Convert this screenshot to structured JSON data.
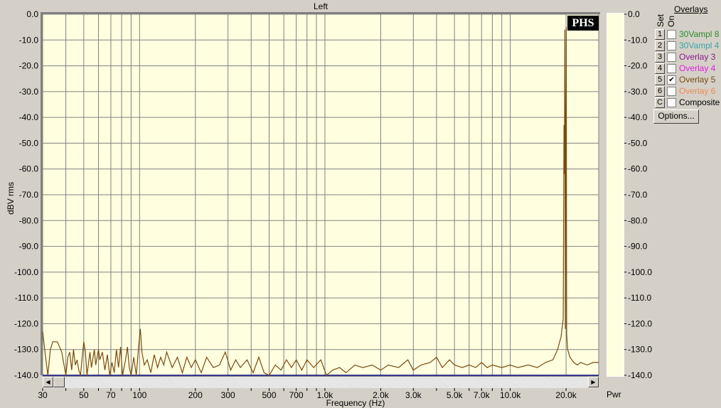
{
  "window": {
    "title": "Left",
    "pwr_label": "Pwr"
  },
  "overlays": {
    "title": "Overlays",
    "set_label": "Set",
    "on_label": "On",
    "options_label": "Options...",
    "items": [
      {
        "key": "1",
        "label": "30Vampl 8",
        "color": "#2e8b2e",
        "on": false
      },
      {
        "key": "2",
        "label": "30Vampl 4",
        "color": "#3aa6a6",
        "on": false
      },
      {
        "key": "3",
        "label": "Overlay 3",
        "color": "#8b1a8b",
        "on": false
      },
      {
        "key": "4",
        "label": "Overlay 4",
        "color": "#e020e0",
        "on": false
      },
      {
        "key": "5",
        "label": "Overlay 5",
        "color": "#7a4a10",
        "on": true
      },
      {
        "key": "6",
        "label": "Overlay 6",
        "color": "#f08a50",
        "on": false
      },
      {
        "key": "C",
        "label": "Composite",
        "color": "#000000",
        "on": false
      }
    ]
  },
  "logo": "PHS",
  "chart_data": {
    "type": "line",
    "title": "Left",
    "xlabel": "Frequency (Hz)",
    "ylabel": "dBV rms",
    "x_scale": "log",
    "xlim": [
      30,
      30000
    ],
    "ylim": [
      -140,
      0
    ],
    "grid": true,
    "plot_bg": "#ffffe0",
    "trace_color": "#7a4a10",
    "xticks": [
      30,
      50,
      70,
      100,
      200,
      300,
      500,
      700,
      1000,
      2000,
      3000,
      5000,
      7000,
      10000,
      20000
    ],
    "xtick_labels": [
      "30",
      "50",
      "70",
      "100",
      "200",
      "300",
      "500",
      "700",
      "1.0k",
      "2.0k",
      "3.0k",
      "5.0k",
      "7.0k",
      "10.0k",
      "20.0k"
    ],
    "yticks": [
      0,
      -10,
      -20,
      -30,
      -40,
      -50,
      -60,
      -70,
      -80,
      -90,
      -100,
      -110,
      -120,
      -130,
      -140
    ],
    "ytick_labels": [
      "0.0",
      "-10.0",
      "-20.0",
      "-30.0",
      "-40.0",
      "-50.0",
      "-60.0",
      "-70.0",
      "-80.0",
      "-90.0",
      "-100.0",
      "-110.0",
      "-120.0",
      "-130.0",
      "-140.0"
    ],
    "series": [
      {
        "points": [
          [
            30,
            -123
          ],
          [
            31,
            -132
          ],
          [
            32,
            -140
          ],
          [
            33,
            -130
          ],
          [
            34,
            -127
          ],
          [
            36,
            -127
          ],
          [
            38,
            -131
          ],
          [
            40,
            -140
          ],
          [
            41,
            -133
          ],
          [
            42,
            -131
          ],
          [
            43,
            -138
          ],
          [
            44,
            -130
          ],
          [
            45,
            -136
          ],
          [
            46,
            -134
          ],
          [
            47,
            -138
          ],
          [
            48,
            -140
          ],
          [
            50,
            -127
          ],
          [
            51,
            -131
          ],
          [
            52,
            -140
          ],
          [
            54,
            -131
          ],
          [
            55,
            -137
          ],
          [
            57,
            -130
          ],
          [
            58,
            -136
          ],
          [
            60,
            -130
          ],
          [
            61,
            -134
          ],
          [
            63,
            -131
          ],
          [
            65,
            -138
          ],
          [
            67,
            -132
          ],
          [
            69,
            -140
          ],
          [
            71,
            -135
          ],
          [
            73,
            -139
          ],
          [
            75,
            -130
          ],
          [
            77,
            -137
          ],
          [
            79,
            -129
          ],
          [
            81,
            -140
          ],
          [
            84,
            -134
          ],
          [
            86,
            -129
          ],
          [
            88,
            -137
          ],
          [
            90,
            -140
          ],
          [
            93,
            -133
          ],
          [
            96,
            -140
          ],
          [
            99,
            -128
          ],
          [
            101,
            -122
          ],
          [
            103,
            -131
          ],
          [
            106,
            -136
          ],
          [
            110,
            -134
          ],
          [
            115,
            -139
          ],
          [
            120,
            -132
          ],
          [
            125,
            -137
          ],
          [
            130,
            -133
          ],
          [
            135,
            -136
          ],
          [
            140,
            -131
          ],
          [
            150,
            -137
          ],
          [
            160,
            -133
          ],
          [
            170,
            -139
          ],
          [
            180,
            -133
          ],
          [
            190,
            -137
          ],
          [
            200,
            -134
          ],
          [
            215,
            -139
          ],
          [
            230,
            -133
          ],
          [
            250,
            -137
          ],
          [
            270,
            -136
          ],
          [
            290,
            -131
          ],
          [
            310,
            -138
          ],
          [
            330,
            -134
          ],
          [
            350,
            -137
          ],
          [
            380,
            -134
          ],
          [
            410,
            -139
          ],
          [
            440,
            -133
          ],
          [
            470,
            -139
          ],
          [
            500,
            -140
          ],
          [
            540,
            -136
          ],
          [
            580,
            -138
          ],
          [
            620,
            -134
          ],
          [
            660,
            -137
          ],
          [
            700,
            -134
          ],
          [
            750,
            -138
          ],
          [
            800,
            -134
          ],
          [
            870,
            -137
          ],
          [
            950,
            -134
          ],
          [
            1020,
            -140
          ],
          [
            1100,
            -138
          ],
          [
            1200,
            -137
          ],
          [
            1300,
            -139
          ],
          [
            1450,
            -136
          ],
          [
            1600,
            -137
          ],
          [
            1800,
            -136
          ],
          [
            2000,
            -138
          ],
          [
            2200,
            -136
          ],
          [
            2500,
            -137
          ],
          [
            2800,
            -134
          ],
          [
            3000,
            -138
          ],
          [
            3300,
            -136
          ],
          [
            3700,
            -135
          ],
          [
            4000,
            -133
          ],
          [
            4300,
            -137
          ],
          [
            4700,
            -134
          ],
          [
            5000,
            -136
          ],
          [
            5500,
            -137
          ],
          [
            6000,
            -136
          ],
          [
            6500,
            -137
          ],
          [
            7000,
            -135
          ],
          [
            7500,
            -137
          ],
          [
            8000,
            -136
          ],
          [
            9000,
            -137
          ],
          [
            10000,
            -136
          ],
          [
            11000,
            -137
          ],
          [
            12500,
            -136
          ],
          [
            14000,
            -137
          ],
          [
            15500,
            -135
          ],
          [
            17000,
            -134
          ],
          [
            18000,
            -130
          ],
          [
            18800,
            -125
          ],
          [
            19300,
            -118
          ],
          [
            19500,
            -43
          ],
          [
            19600,
            -62
          ],
          [
            19700,
            -6
          ],
          [
            19800,
            -122
          ],
          [
            19950,
            -38
          ],
          [
            20050,
            -5
          ],
          [
            20150,
            -124
          ],
          [
            20400,
            -130
          ],
          [
            21000,
            -133
          ],
          [
            22000,
            -135
          ],
          [
            23000,
            -136
          ],
          [
            24000,
            -135
          ],
          [
            26000,
            -136
          ],
          [
            28000,
            -135
          ],
          [
            30000,
            -135
          ]
        ]
      }
    ]
  }
}
